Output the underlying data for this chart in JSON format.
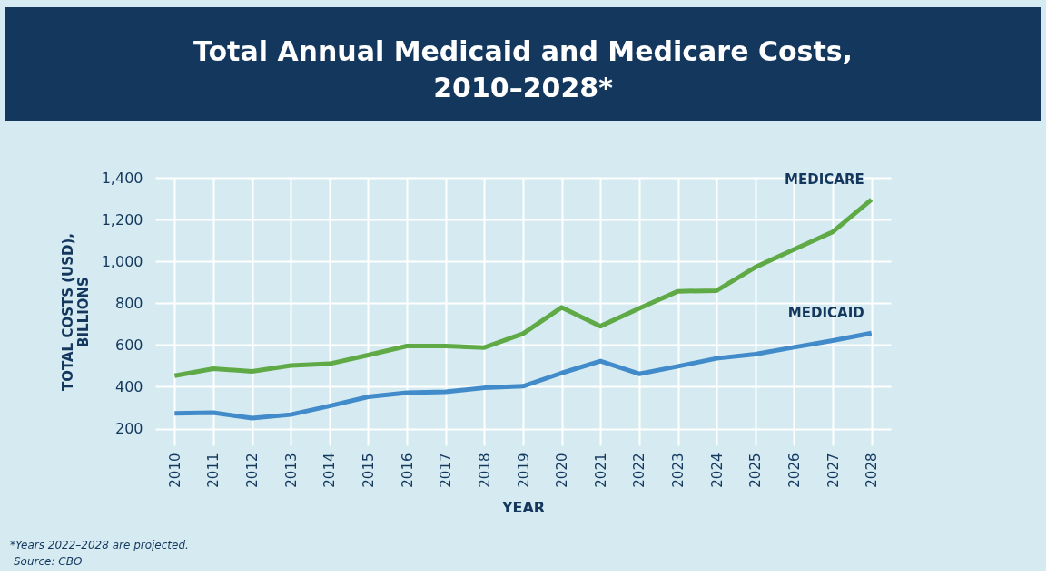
{
  "chart_data": {
    "type": "line",
    "title": "Total Annual Medicaid and Medicare Costs, 2010–2028*",
    "xlabel": "YEAR",
    "ylabel": "TOTAL COSTS (USD), BILLIONS",
    "categories": [
      "2010",
      "2011",
      "2012",
      "2013",
      "2014",
      "2015",
      "2016",
      "2017",
      "2018",
      "2019",
      "2020",
      "2021",
      "2022",
      "2023",
      "2024",
      "2025",
      "2026",
      "2027",
      "2028"
    ],
    "series": [
      {
        "name": "MEDICARE",
        "color": "#5faa46",
        "values": [
          453,
          487,
          474,
          502,
          510,
          552,
          595,
          595,
          588,
          654,
          780,
          690,
          775,
          857,
          860,
          972,
          1057,
          1141,
          1295
        ]
      },
      {
        "name": "MEDICAID",
        "color": "#428bca",
        "values": [
          273,
          276,
          250,
          267,
          308,
          352,
          372,
          376,
          395,
          403,
          466,
          523,
          462,
          498,
          536,
          556,
          589,
          621,
          657
        ]
      }
    ],
    "ylim": [
      120,
      1400
    ],
    "yticks": [
      200,
      400,
      600,
      800,
      {
        "value": 1000,
        "label": "1,000"
      },
      {
        "value": 1200,
        "label": "1,200"
      },
      {
        "value": 1400,
        "label": "1,400"
      }
    ],
    "grid": true,
    "legend": false,
    "marker": "none",
    "line_style": "solid",
    "annotations": [
      "*Years 2022–2028 are projected.",
      "Source: CBO"
    ]
  }
}
